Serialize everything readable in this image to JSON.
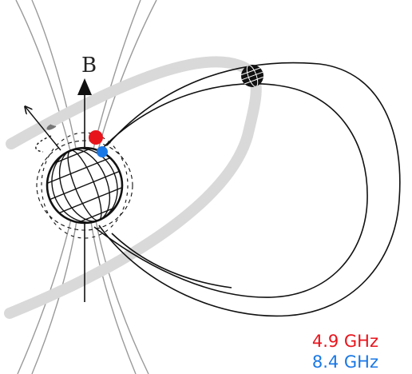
{
  "diagram": {
    "axis_label": "B",
    "legend": [
      {
        "text": "4.9 GHz",
        "color": "#e8141c"
      },
      {
        "text": "8.4 GHz",
        "color": "#1a78e6"
      }
    ],
    "colors": {
      "ink": "#111111",
      "field_lines": "#9a9a9a",
      "orbit_band": "#d9d9d9",
      "marker_49": "#e8141c",
      "marker_84": "#1a78e6"
    },
    "icons": [
      "planet-globe",
      "moon-globe",
      "rotation-arrow",
      "magnetic-axis-arrow"
    ]
  }
}
